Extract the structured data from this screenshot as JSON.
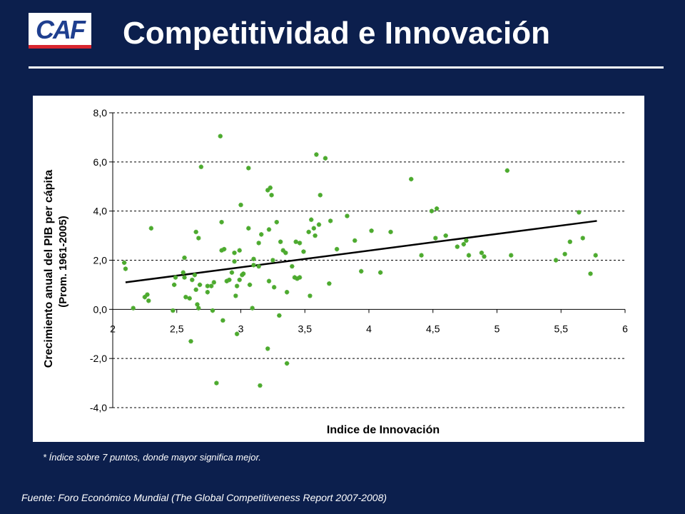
{
  "header": {
    "logo_text": "CAF",
    "title": "Competitividad e Innovación"
  },
  "colors": {
    "background": "#0c1f4d",
    "point": "#4caa2e",
    "trendline": "#000000",
    "logo_blue": "#1f3f8f",
    "logo_red": "#d8262f"
  },
  "chart_data": {
    "type": "scatter",
    "xlabel": "Indice de Innovación",
    "ylabel_line1": "Crecimiento anual del PIB per cápita",
    "ylabel_line2": "(Prom. 1961-2005)",
    "xlim": [
      2,
      6
    ],
    "ylim": [
      -4,
      8
    ],
    "x_ticks": [
      2,
      2.5,
      3,
      3.5,
      4,
      4.5,
      5,
      5.5,
      6
    ],
    "x_tick_labels": [
      "2",
      "2,5",
      "3",
      "3,5",
      "4",
      "4,5",
      "5",
      "5,5",
      "6"
    ],
    "y_ticks": [
      -4,
      -2,
      0,
      2,
      4,
      6,
      8
    ],
    "y_tick_labels": [
      "-4,0",
      "-2,0",
      "0,0",
      "2,0",
      "4,0",
      "6,0",
      "8,0"
    ],
    "grid": "horizontal dashed",
    "trendline": {
      "x": [
        2.1,
        5.78
      ],
      "y": [
        1.1,
        3.6
      ]
    },
    "points": [
      {
        "x": 2.09,
        "y": 1.9
      },
      {
        "x": 2.1,
        "y": 1.65
      },
      {
        "x": 2.16,
        "y": 0.05
      },
      {
        "x": 2.25,
        "y": 0.5
      },
      {
        "x": 2.27,
        "y": 0.6
      },
      {
        "x": 2.28,
        "y": 0.35
      },
      {
        "x": 2.3,
        "y": 3.3
      },
      {
        "x": 2.47,
        "y": -0.05
      },
      {
        "x": 2.48,
        "y": 1.0
      },
      {
        "x": 2.49,
        "y": 1.3
      },
      {
        "x": 2.55,
        "y": 1.5
      },
      {
        "x": 2.56,
        "y": 1.3
      },
      {
        "x": 2.56,
        "y": 2.1
      },
      {
        "x": 2.57,
        "y": 0.5
      },
      {
        "x": 2.6,
        "y": 0.45
      },
      {
        "x": 2.61,
        "y": -1.3
      },
      {
        "x": 2.62,
        "y": 1.2
      },
      {
        "x": 2.64,
        "y": 1.4
      },
      {
        "x": 2.65,
        "y": 0.8
      },
      {
        "x": 2.65,
        "y": 3.15
      },
      {
        "x": 2.66,
        "y": 0.2
      },
      {
        "x": 2.67,
        "y": 2.9
      },
      {
        "x": 2.67,
        "y": 0.05
      },
      {
        "x": 2.68,
        "y": 1.0
      },
      {
        "x": 2.69,
        "y": 5.8
      },
      {
        "x": 2.74,
        "y": 0.95
      },
      {
        "x": 2.74,
        "y": 0.7
      },
      {
        "x": 2.77,
        "y": 0.95
      },
      {
        "x": 2.78,
        "y": -0.05
      },
      {
        "x": 2.79,
        "y": 1.1
      },
      {
        "x": 2.81,
        "y": -3.0
      },
      {
        "x": 2.84,
        "y": 7.05
      },
      {
        "x": 2.85,
        "y": 2.4
      },
      {
        "x": 2.85,
        "y": 3.55
      },
      {
        "x": 2.86,
        "y": -0.45
      },
      {
        "x": 2.87,
        "y": 2.45
      },
      {
        "x": 2.89,
        "y": 1.15
      },
      {
        "x": 2.91,
        "y": 1.2
      },
      {
        "x": 2.93,
        "y": 1.5
      },
      {
        "x": 2.95,
        "y": 1.95
      },
      {
        "x": 2.95,
        "y": 2.3
      },
      {
        "x": 2.96,
        "y": 0.55
      },
      {
        "x": 2.97,
        "y": 0.95
      },
      {
        "x": 2.97,
        "y": -1.0
      },
      {
        "x": 2.99,
        "y": 1.2
      },
      {
        "x": 2.99,
        "y": 2.4
      },
      {
        "x": 3.0,
        "y": 4.25
      },
      {
        "x": 3.01,
        "y": 1.4
      },
      {
        "x": 3.02,
        "y": 1.45
      },
      {
        "x": 3.06,
        "y": 5.75
      },
      {
        "x": 3.06,
        "y": 3.3
      },
      {
        "x": 3.07,
        "y": 1.0
      },
      {
        "x": 3.09,
        "y": 0.05
      },
      {
        "x": 3.1,
        "y": 1.8
      },
      {
        "x": 3.1,
        "y": 2.05
      },
      {
        "x": 3.14,
        "y": 1.75
      },
      {
        "x": 3.14,
        "y": 2.7
      },
      {
        "x": 3.15,
        "y": -3.1
      },
      {
        "x": 3.16,
        "y": 3.05
      },
      {
        "x": 3.21,
        "y": -1.6
      },
      {
        "x": 3.21,
        "y": 4.85
      },
      {
        "x": 3.22,
        "y": 1.15
      },
      {
        "x": 3.22,
        "y": 3.25
      },
      {
        "x": 3.23,
        "y": 4.95
      },
      {
        "x": 3.24,
        "y": 4.65
      },
      {
        "x": 3.25,
        "y": 2.0
      },
      {
        "x": 3.26,
        "y": 0.9
      },
      {
        "x": 3.28,
        "y": 3.55
      },
      {
        "x": 3.3,
        "y": -0.25
      },
      {
        "x": 3.31,
        "y": 2.75
      },
      {
        "x": 3.33,
        "y": 2.4
      },
      {
        "x": 3.35,
        "y": 2.3
      },
      {
        "x": 3.36,
        "y": 0.7
      },
      {
        "x": 3.36,
        "y": -2.2
      },
      {
        "x": 3.4,
        "y": 1.75
      },
      {
        "x": 3.42,
        "y": 1.3
      },
      {
        "x": 3.43,
        "y": 2.75
      },
      {
        "x": 3.44,
        "y": 1.25
      },
      {
        "x": 3.46,
        "y": 1.3
      },
      {
        "x": 3.46,
        "y": 2.7
      },
      {
        "x": 3.49,
        "y": 2.35
      },
      {
        "x": 3.53,
        "y": 3.15
      },
      {
        "x": 3.54,
        "y": 0.55
      },
      {
        "x": 3.55,
        "y": 3.65
      },
      {
        "x": 3.57,
        "y": 3.3
      },
      {
        "x": 3.58,
        "y": 3.0
      },
      {
        "x": 3.59,
        "y": 6.3
      },
      {
        "x": 3.61,
        "y": 3.45
      },
      {
        "x": 3.62,
        "y": 4.65
      },
      {
        "x": 3.66,
        "y": 6.15
      },
      {
        "x": 3.69,
        "y": 1.05
      },
      {
        "x": 3.7,
        "y": 3.6
      },
      {
        "x": 3.75,
        "y": 2.45
      },
      {
        "x": 3.83,
        "y": 3.8
      },
      {
        "x": 3.89,
        "y": 2.8
      },
      {
        "x": 3.94,
        "y": 1.55
      },
      {
        "x": 4.02,
        "y": 3.2
      },
      {
        "x": 4.09,
        "y": 1.5
      },
      {
        "x": 4.17,
        "y": 3.15
      },
      {
        "x": 4.33,
        "y": 5.3
      },
      {
        "x": 4.41,
        "y": 2.2
      },
      {
        "x": 4.49,
        "y": 4.0
      },
      {
        "x": 4.52,
        "y": 2.9
      },
      {
        "x": 4.53,
        "y": 4.1
      },
      {
        "x": 4.6,
        "y": 3.0
      },
      {
        "x": 4.69,
        "y": 2.55
      },
      {
        "x": 4.74,
        "y": 2.65
      },
      {
        "x": 4.76,
        "y": 2.8
      },
      {
        "x": 4.78,
        "y": 2.2
      },
      {
        "x": 4.88,
        "y": 2.3
      },
      {
        "x": 4.9,
        "y": 2.15
      },
      {
        "x": 5.08,
        "y": 5.65
      },
      {
        "x": 5.11,
        "y": 2.2
      },
      {
        "x": 5.46,
        "y": 2.0
      },
      {
        "x": 5.53,
        "y": 2.25
      },
      {
        "x": 5.57,
        "y": 2.75
      },
      {
        "x": 5.64,
        "y": 3.95
      },
      {
        "x": 5.67,
        "y": 2.9
      },
      {
        "x": 5.73,
        "y": 1.45
      },
      {
        "x": 5.77,
        "y": 2.2
      }
    ]
  },
  "footnote": "* Índice sobre 7 puntos, donde mayor significa mejor.",
  "source": "Fuente: Foro Económico Mundial (The Global Competitiveness Report  2007-2008)"
}
